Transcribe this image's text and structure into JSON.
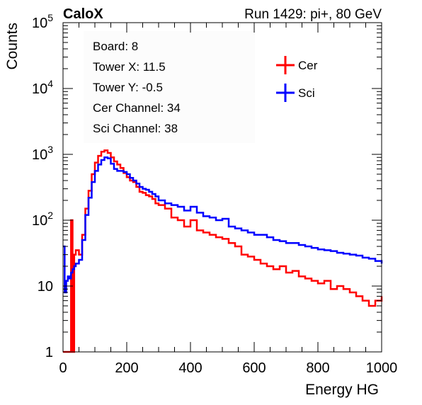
{
  "header": {
    "experiment": "CaloX",
    "run_info": "Run 1429: pi+, 80 GeV"
  },
  "info_box": {
    "lines": [
      "Board: 8",
      "Tower X: 11.5",
      "Tower Y: -0.5",
      "Cer Channel: 34",
      "Sci Channel: 38"
    ]
  },
  "colors": {
    "cer": "#ff0000",
    "sci": "#0000ff",
    "axis": "#000000"
  },
  "chart_data": {
    "type": "line",
    "style": "step-histogram",
    "xlabel": "Energy HG",
    "ylabel": "Counts",
    "xlim": [
      0,
      1000
    ],
    "ylim": [
      1,
      100000
    ],
    "yscale": "log",
    "x_ticks": [
      "0",
      "200",
      "400",
      "600",
      "800",
      "1000"
    ],
    "y_ticks": [
      {
        "base": "1",
        "exp": ""
      },
      {
        "base": "10",
        "exp": ""
      },
      {
        "base": "10",
        "exp": "2"
      },
      {
        "base": "10",
        "exp": "3"
      },
      {
        "base": "10",
        "exp": "4"
      },
      {
        "base": "10",
        "exp": "5"
      }
    ],
    "legend": {
      "placement": "top-right",
      "entries": [
        "Cer",
        "Sci"
      ]
    },
    "series": [
      {
        "name": "Cer",
        "color": "#ff0000",
        "x": [
          0,
          5,
          10,
          15,
          20,
          25,
          30,
          35,
          40,
          50,
          60,
          70,
          80,
          90,
          100,
          110,
          120,
          130,
          140,
          150,
          160,
          170,
          180,
          190,
          200,
          210,
          220,
          230,
          240,
          250,
          260,
          270,
          280,
          290,
          300,
          320,
          340,
          360,
          380,
          400,
          420,
          440,
          460,
          480,
          500,
          520,
          540,
          560,
          580,
          600,
          620,
          640,
          660,
          680,
          700,
          720,
          740,
          760,
          780,
          800,
          820,
          840,
          860,
          880,
          900,
          920,
          940,
          960,
          980,
          1000
        ],
        "values": [
          1,
          1,
          1,
          1,
          1,
          100,
          1,
          30,
          35,
          30,
          60,
          150,
          280,
          500,
          750,
          950,
          1100,
          1150,
          1050,
          900,
          780,
          700,
          620,
          520,
          450,
          400,
          380,
          320,
          270,
          260,
          240,
          230,
          210,
          180,
          170,
          150,
          110,
          100,
          80,
          100,
          70,
          65,
          60,
          55,
          52,
          45,
          40,
          30,
          28,
          25,
          22,
          20,
          18,
          20,
          16,
          17,
          14,
          13,
          12,
          11,
          12,
          9,
          10,
          9,
          8,
          7,
          6,
          5,
          6,
          7
        ]
      },
      {
        "name": "Sci",
        "color": "#0000ff",
        "x": [
          0,
          5,
          10,
          15,
          20,
          25,
          30,
          35,
          40,
          50,
          60,
          70,
          80,
          90,
          100,
          110,
          120,
          130,
          140,
          150,
          160,
          170,
          180,
          190,
          200,
          210,
          220,
          230,
          240,
          250,
          260,
          270,
          280,
          290,
          300,
          320,
          340,
          360,
          380,
          400,
          420,
          440,
          460,
          480,
          500,
          520,
          540,
          560,
          580,
          600,
          620,
          640,
          660,
          680,
          700,
          720,
          740,
          760,
          780,
          800,
          820,
          840,
          860,
          880,
          900,
          920,
          940,
          960,
          980,
          1000
        ],
        "values": [
          40,
          8,
          12,
          14,
          13,
          16,
          18,
          20,
          22,
          25,
          50,
          120,
          220,
          380,
          560,
          700,
          820,
          900,
          870,
          720,
          600,
          560,
          560,
          540,
          500,
          440,
          400,
          360,
          320,
          300,
          290,
          270,
          250,
          230,
          200,
          180,
          170,
          160,
          140,
          160,
          130,
          115,
          110,
          100,
          105,
          80,
          75,
          70,
          65,
          60,
          60,
          55,
          50,
          48,
          45,
          45,
          42,
          40,
          38,
          36,
          35,
          34,
          32,
          31,
          30,
          29,
          27,
          26,
          24,
          22
        ]
      }
    ]
  }
}
